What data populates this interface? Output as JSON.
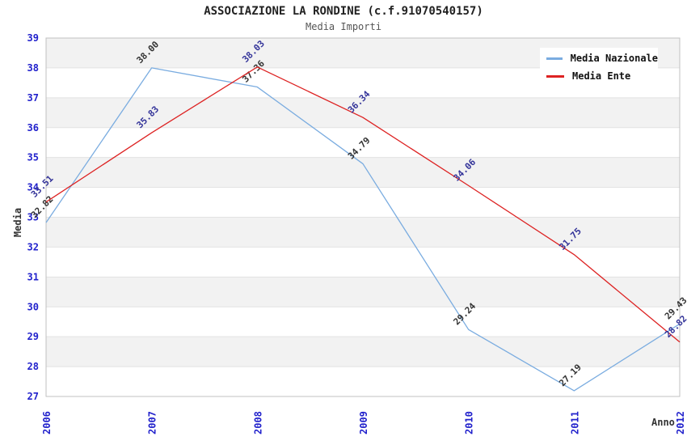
{
  "header": {
    "title": "ASSOCIAZIONE LA RONDINE (c.f.91070540157)",
    "subtitle": "Media Importi"
  },
  "chart_data": {
    "type": "line",
    "x": [
      "2006",
      "2007",
      "2008",
      "2009",
      "2010",
      "2011",
      "2012"
    ],
    "xlabel": "Anno",
    "ylabel": "Media",
    "ylim": [
      27,
      39
    ],
    "y_tick_step": 1,
    "grid": true,
    "banded_background": true,
    "legend_position": "top-right",
    "point_labels_rotated_45": true,
    "series": [
      {
        "name": "Media Nazionale",
        "color": "#7AACE0",
        "label_color": "#333333",
        "values": [
          32.82,
          38.0,
          37.36,
          34.79,
          29.24,
          27.19,
          29.43
        ]
      },
      {
        "name": "Media Ente",
        "color": "#DD2222",
        "label_color": "#333399",
        "values": [
          33.51,
          35.83,
          38.03,
          36.34,
          34.06,
          31.75,
          28.82
        ]
      }
    ]
  },
  "colors": {
    "tick_label": "#2222CC",
    "band_gray": "#F2F2F2",
    "band_white": "#FFFFFF",
    "plot_border": "#C0C0C0",
    "grid_line": "#E2E2E2",
    "title": "#222222",
    "subtitle": "#555555",
    "axis_title": "#333333",
    "legend_bg": "#FFFFFF"
  }
}
